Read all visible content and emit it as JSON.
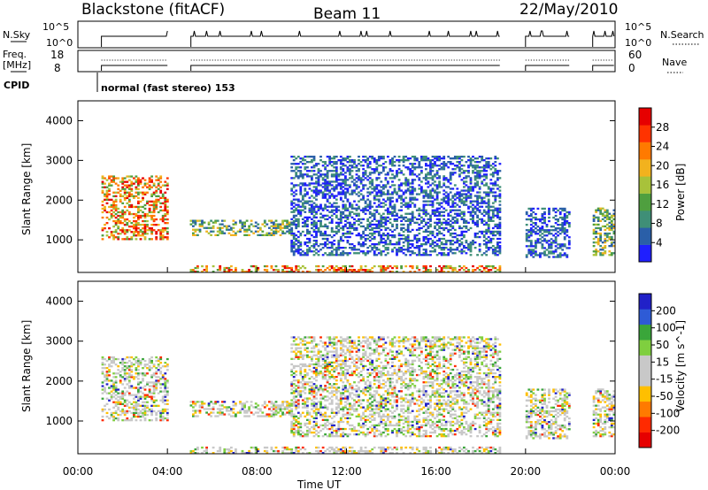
{
  "header": {
    "station": "Blackstone (fitACF)",
    "beam": "Beam 11",
    "date": "22/May/2010"
  },
  "strip": {
    "nsky_label": "N.Sky",
    "nsky_ticks": [
      "10^5",
      "10^0"
    ],
    "nsearch_label": "N.Search",
    "nsearch_ticks": [
      "10^5",
      "10^0"
    ],
    "freq_label": "Freq.",
    "freq_unit": "[MHz]",
    "freq_ticks": [
      "18",
      "8"
    ],
    "nave_label": "Nave",
    "nave_ticks": [
      "60",
      "0"
    ],
    "cpid_label": "CPID",
    "cpid_text": "normal (fast stereo) 153"
  },
  "colors": {
    "power_scale": [
      "#1f1fff",
      "#2a5fa8",
      "#3f8f77",
      "#4f9f3f",
      "#a8c23a",
      "#f2b21e",
      "#ff7a00",
      "#ff3300",
      "#e60000"
    ],
    "velocity_scale": [
      "#2121c8",
      "#2e5bd6",
      "#3aa63a",
      "#7fcf3f",
      "#c8c8c8",
      "#c8c8c8",
      "#ffbf00",
      "#ff7a00",
      "#ff2a00",
      "#e60000"
    ],
    "ground_scatter": "#bbbbbb"
  },
  "chart_data": [
    {
      "type": "heatmap",
      "panel": "power",
      "ylabel": "Slant Range [km]",
      "y_ticks": [
        "4000",
        "3000",
        "2000",
        "1000"
      ],
      "ylim": [
        180,
        4500
      ],
      "colorbar_label": "Power [dB]",
      "colorbar_ticks": [
        "28",
        "24",
        "20",
        "16",
        "12",
        "8",
        "4"
      ],
      "colorbar_range": [
        0,
        30
      ],
      "bands": [
        {
          "t0": 1.05,
          "t1": 4.0,
          "r0": 1000,
          "r1": 2600,
          "level": "high"
        },
        {
          "t0": 5.0,
          "t1": 9.5,
          "r0": 1100,
          "r1": 1500,
          "level": "mid"
        },
        {
          "t0": 5.0,
          "t1": 18.9,
          "r0": 180,
          "r1": 350,
          "level": "high"
        },
        {
          "t0": 9.5,
          "t1": 18.9,
          "r0": 600,
          "r1": 3100,
          "level": "low"
        },
        {
          "t0": 20.0,
          "t1": 22.0,
          "r0": 550,
          "r1": 1800,
          "level": "low"
        },
        {
          "t0": 23.0,
          "t1": 24.0,
          "r0": 600,
          "r1": 1800,
          "level": "mid"
        }
      ]
    },
    {
      "type": "heatmap",
      "panel": "velocity",
      "ylabel": "Slant Range [km]",
      "y_ticks": [
        "4000",
        "3000",
        "2000",
        "1000"
      ],
      "ylim": [
        180,
        4500
      ],
      "colorbar_label": "Velocity [m s^-1]",
      "colorbar_ticks": [
        "200",
        "100",
        "50",
        "15",
        "-15",
        "-50",
        "-100",
        "-200"
      ],
      "colorbar_range": [
        -250,
        250
      ],
      "xlabel": "Time UT",
      "x_ticks": [
        "00:00",
        "04:00",
        "08:00",
        "12:00",
        "16:00",
        "20:00",
        "00:00"
      ],
      "xlim": [
        0,
        24
      ],
      "data_gaps": [
        [
          4.0,
          5.0
        ],
        [
          18.9,
          20.0
        ],
        [
          22.0,
          23.0
        ]
      ]
    }
  ]
}
